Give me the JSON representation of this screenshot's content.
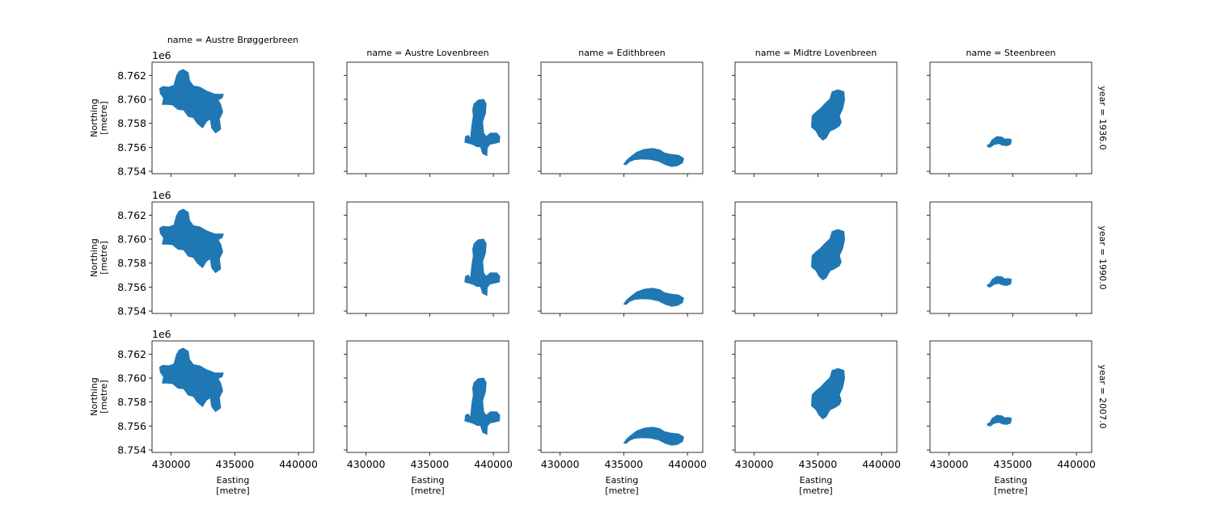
{
  "chart_data": {
    "type": "facet-map",
    "description_colors": {
      "fill": "#1f77b4",
      "axes": "#000000",
      "background": "#ffffff"
    },
    "col_facet_labels": [
      "name = Austre Brøggerbreen",
      "name = Austre Lovenbreen",
      "name = Edithbreen",
      "name = Midtre Lovenbreen",
      "name = Steenbreen"
    ],
    "row_facet_labels": [
      "year = 1936.0",
      "year = 1990.0",
      "year = 2007.0"
    ],
    "xlabel": [
      "Easting",
      "[metre]"
    ],
    "ylabel": [
      "Northing",
      "[metre]"
    ],
    "y_offset_label": "1e6",
    "xlim": [
      428500,
      441200
    ],
    "ylim": [
      8753800,
      8763100
    ],
    "x_ticks": [
      430000,
      435000,
      440000
    ],
    "x_tick_labels": [
      "430000",
      "435000",
      "440000"
    ],
    "y_ticks": [
      8754000,
      8756000,
      8758000,
      8760000,
      8762000
    ],
    "y_tick_labels": [
      "8.754",
      "8.756",
      "8.758",
      "8.760",
      "8.762"
    ],
    "glaciers": [
      {
        "name": "Austre Brøggerbreen",
        "extent_x": [
          429100,
          434200
        ],
        "extent_y": [
          8757200,
          8762500
        ]
      },
      {
        "name": "Austre Lovenbreen",
        "extent_x": [
          437700,
          440500
        ],
        "extent_y": [
          8755300,
          8760000
        ]
      },
      {
        "name": "Edithbreen",
        "extent_x": [
          435000,
          439700
        ],
        "extent_y": [
          8754400,
          8755900
        ]
      },
      {
        "name": "Midtre Lovenbreen",
        "extent_x": [
          434500,
          437100
        ],
        "extent_y": [
          8756600,
          8760800
        ]
      },
      {
        "name": "Steenbreen",
        "extent_x": [
          433000,
          434900
        ],
        "extent_y": [
          8756000,
          8756900
        ]
      }
    ]
  }
}
